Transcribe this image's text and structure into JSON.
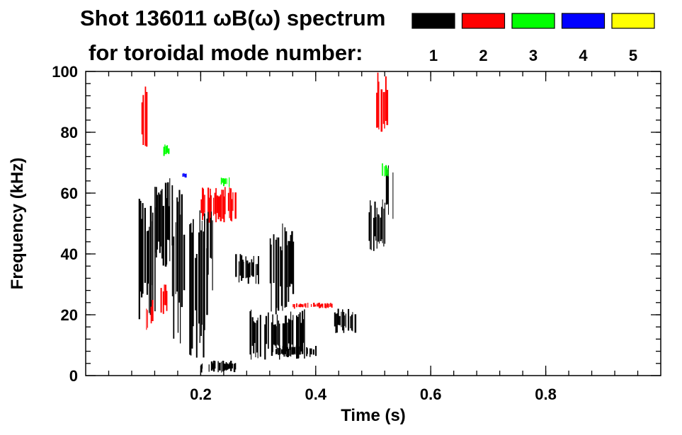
{
  "chart_data": {
    "type": "heatmap",
    "title_line1": "Shot 136011 ωB(ω) spectrum",
    "title_line2": "for toroidal mode number:",
    "xlabel": "Time (s)",
    "ylabel": "Frequency (kHz)",
    "xlim": [
      0.0,
      1.0
    ],
    "ylim": [
      0,
      100
    ],
    "x_ticks": [
      0.2,
      0.4,
      0.6,
      0.8
    ],
    "x_tick_labels": [
      "0.2",
      "0.4",
      "0.6",
      "0.8"
    ],
    "y_ticks": [
      0,
      20,
      40,
      60,
      80,
      100
    ],
    "y_tick_labels": [
      "0",
      "20",
      "40",
      "60",
      "80",
      "100"
    ],
    "legend": [
      {
        "label": "1",
        "color": "#000000"
      },
      {
        "label": "2",
        "color": "#ff0000"
      },
      {
        "label": "3",
        "color": "#00ff00"
      },
      {
        "label": "4",
        "color": "#0000ff"
      },
      {
        "label": "5",
        "color": "#ffff00"
      }
    ],
    "series": [
      {
        "name": "n=1",
        "color": "#000000",
        "regions": [
          {
            "t": [
              0.09,
              0.12
            ],
            "f": [
              15,
              63
            ]
          },
          {
            "t": [
              0.12,
              0.15
            ],
            "f": [
              35,
              65
            ]
          },
          {
            "t": [
              0.15,
              0.17
            ],
            "f": [
              10,
              62
            ]
          },
          {
            "t": [
              0.18,
              0.21
            ],
            "f": [
              2,
              58
            ]
          },
          {
            "t": [
              0.2,
              0.26
            ],
            "f": [
              1,
              5
            ]
          },
          {
            "t": [
              0.21,
              0.22
            ],
            "f": [
              28,
              62
            ]
          },
          {
            "t": [
              0.26,
              0.3
            ],
            "f": [
              30,
              40
            ]
          },
          {
            "t": [
              0.285,
              0.38
            ],
            "f": [
              5,
              22
            ]
          },
          {
            "t": [
              0.33,
              0.4
            ],
            "f": [
              6,
              10
            ]
          },
          {
            "t": [
              0.32,
              0.36
            ],
            "f": [
              20,
              50
            ]
          },
          {
            "t": [
              0.43,
              0.47
            ],
            "f": [
              14,
              22
            ]
          },
          {
            "t": [
              0.49,
              0.52
            ],
            "f": [
              40,
              58
            ]
          },
          {
            "t": [
              0.52,
              0.535
            ],
            "f": [
              50,
              72
            ]
          }
        ]
      },
      {
        "name": "n=2",
        "color": "#ff0000",
        "regions": [
          {
            "t": [
              0.095,
              0.105
            ],
            "f": [
              70,
              100
            ]
          },
          {
            "t": [
              0.105,
              0.115
            ],
            "f": [
              15,
              25
            ]
          },
          {
            "t": [
              0.13,
              0.14
            ],
            "f": [
              20,
              30
            ]
          },
          {
            "t": [
              0.2,
              0.26
            ],
            "f": [
              50,
              62
            ]
          },
          {
            "t": [
              0.36,
              0.43
            ],
            "f": [
              22,
              24
            ]
          },
          {
            "t": [
              0.505,
              0.525
            ],
            "f": [
              78,
              100
            ]
          }
        ]
      },
      {
        "name": "n=3",
        "color": "#00ff00",
        "regions": [
          {
            "t": [
              0.235,
              0.25
            ],
            "f": [
              62,
              66
            ]
          },
          {
            "t": [
              0.135,
              0.145
            ],
            "f": [
              72,
              76
            ]
          },
          {
            "t": [
              0.515,
              0.525
            ],
            "f": [
              64,
              70
            ]
          }
        ]
      },
      {
        "name": "n=4",
        "color": "#0000ff",
        "regions": [
          {
            "t": [
              0.168,
              0.176
            ],
            "f": [
              65,
              67
            ]
          }
        ]
      },
      {
        "name": "n=5",
        "color": "#ffff00",
        "regions": []
      }
    ]
  }
}
